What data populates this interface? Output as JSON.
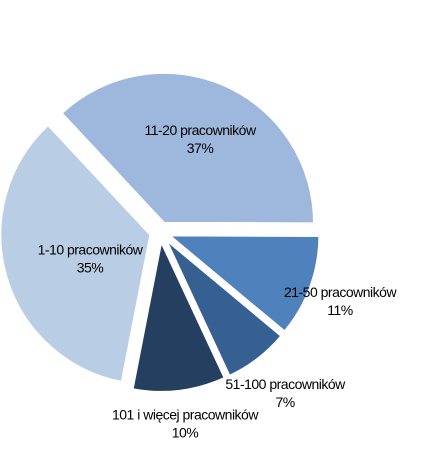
{
  "chart_data": {
    "type": "pie",
    "categories": [
      "11-20 pracowników",
      "21-50 pracowników",
      "51-100 pracowników",
      "101 i więcej pracowników",
      "1-10 pracowników"
    ],
    "values": [
      37,
      11,
      7,
      10,
      35
    ],
    "value_labels": [
      "37%",
      "11%",
      "7%",
      "10%",
      "35%"
    ],
    "colors": [
      "#9db8dc",
      "#4f81bd",
      "#376092",
      "#243f60",
      "#b9cde5"
    ]
  }
}
